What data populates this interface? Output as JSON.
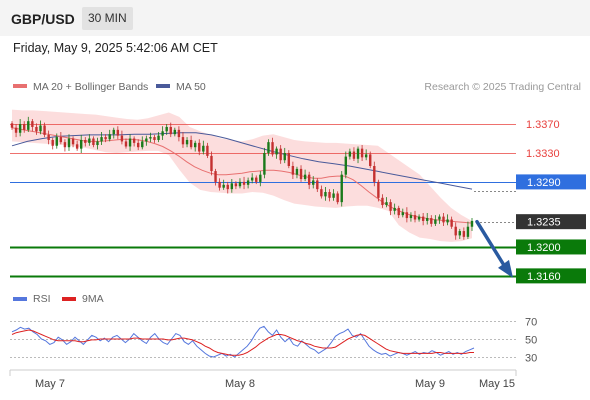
{
  "header": {
    "symbol": "GBP/USD",
    "timeframe": "30 MIN",
    "datetime": "Friday, May 9, 2025 5:42:06 AM CET"
  },
  "legend": {
    "ma20": "MA 20 + Bollinger Bands",
    "ma50": "MA 50",
    "credit": "Research © 2025 Trading Central"
  },
  "colors": {
    "resistance": "#e8413e",
    "support": "#0a7a0a",
    "pivot": "#2f6fdf",
    "last": "#333333",
    "ma20": "#e87070",
    "ma50": "#4a5a9a",
    "band": "#fbd4d4",
    "up_candle": "#1a7a1a",
    "down_candle": "#c43030",
    "rsi": "#5577dd",
    "rsi_ma": "#dd2222",
    "arrow": "#2a5aa0"
  },
  "chart_data": [
    {
      "type": "candlestick",
      "ylim": [
        1.3146,
        1.3395
      ],
      "levels": [
        {
          "label": "1.3370",
          "value": 1.337,
          "kind": "resistance"
        },
        {
          "label": "1.3330",
          "value": 1.333,
          "kind": "resistance"
        },
        {
          "label": "1.3290",
          "value": 1.329,
          "kind": "pivot"
        },
        {
          "label": "1.3235",
          "value": 1.3235,
          "kind": "last"
        },
        {
          "label": "1.3200",
          "value": 1.32,
          "kind": "support"
        },
        {
          "label": "1.3160",
          "value": 1.316,
          "kind": "support"
        }
      ],
      "x_ticks": [
        "May 7",
        "May 8",
        "May 9",
        "May 15"
      ],
      "closes": [
        1.3365,
        1.3358,
        1.337,
        1.3362,
        1.3374,
        1.3366,
        1.336,
        1.3368,
        1.3355,
        1.3348,
        1.334,
        1.3352,
        1.3345,
        1.3338,
        1.335,
        1.3342,
        1.3336,
        1.3348,
        1.3344,
        1.335,
        1.3341,
        1.3346,
        1.3352,
        1.3349,
        1.3356,
        1.3362,
        1.3354,
        1.3346,
        1.3339,
        1.335,
        1.3344,
        1.3338,
        1.3346,
        1.335,
        1.3352,
        1.3348,
        1.3354,
        1.336,
        1.3366,
        1.3356,
        1.3362,
        1.3352,
        1.3342,
        1.3348,
        1.3338,
        1.3344,
        1.3332,
        1.334,
        1.3326,
        1.3305,
        1.329,
        1.3282,
        1.3286,
        1.328,
        1.3288,
        1.3284,
        1.329,
        1.3286,
        1.3292,
        1.3296,
        1.329,
        1.33,
        1.333,
        1.3345,
        1.3328,
        1.3336,
        1.332,
        1.333,
        1.3312,
        1.33,
        1.3308,
        1.3294,
        1.33,
        1.3286,
        1.3292,
        1.328,
        1.327,
        1.3276,
        1.3268,
        1.3274,
        1.3262,
        1.33,
        1.3325,
        1.3332,
        1.3322,
        1.3336,
        1.3324,
        1.3328,
        1.3312,
        1.329,
        1.3268,
        1.3258,
        1.3262,
        1.325,
        1.3254,
        1.3244,
        1.3248,
        1.324,
        1.3244,
        1.3238,
        1.3242,
        1.3236,
        1.324,
        1.3232,
        1.3238,
        1.3242,
        1.3234,
        1.3238,
        1.3228,
        1.3216,
        1.3222,
        1.3214,
        1.3228,
        1.3236
      ],
      "ma20": [
        1.3365,
        1.3363,
        1.3361,
        1.3359,
        1.3357,
        1.3355,
        1.3353,
        1.3351,
        1.3349,
        1.3347,
        1.3346,
        1.3346,
        1.3347,
        1.3348,
        1.3349,
        1.3349,
        1.3348,
        1.3346,
        1.3343,
        1.3339,
        1.3333,
        1.3326,
        1.3318,
        1.3311,
        1.3306,
        1.3302,
        1.33,
        1.33,
        1.3301,
        1.3302,
        1.3304,
        1.3305,
        1.3306,
        1.3306,
        1.3305,
        1.3303,
        1.33,
        1.3297,
        1.3295,
        1.3295,
        1.3297,
        1.3298,
        1.3298,
        1.3293,
        1.3285,
        1.3276,
        1.3268,
        1.326,
        1.3254,
        1.3249,
        1.3245,
        1.3242,
        1.324,
        1.3238,
        1.3237,
        1.3236,
        1.3235,
        1.3234,
        1.3233
      ],
      "ma50": [
        1.334,
        1.3346,
        1.335,
        1.3353,
        1.3354,
        1.3355,
        1.3355,
        1.3355,
        1.3356,
        1.3356,
        1.3357,
        1.3358,
        1.3358,
        1.3355,
        1.335,
        1.3344,
        1.3338,
        1.3332,
        1.3327,
        1.3322,
        1.3318,
        1.3315,
        1.3312,
        1.3308,
        1.3304,
        1.33,
        1.3296,
        1.3292,
        1.3288,
        1.3284,
        1.328
      ],
      "bb_upper": [
        1.339,
        1.3389,
        1.3389,
        1.3388,
        1.3387,
        1.3386,
        1.3385,
        1.3384,
        1.3383,
        1.3381,
        1.3379,
        1.3377,
        1.3376,
        1.3378,
        1.3382,
        1.3386,
        1.338,
        1.3366,
        1.336,
        1.3355,
        1.335,
        1.3348,
        1.3346,
        1.3349,
        1.3354,
        1.3356,
        1.3352,
        1.3348,
        1.3346,
        1.3345,
        1.3344,
        1.3344,
        1.3343,
        1.3342,
        1.3341,
        1.334,
        1.333,
        1.332,
        1.331,
        1.33,
        1.3284,
        1.3268,
        1.3254,
        1.3244,
        1.3236
      ],
      "bb_lower": [
        1.3346,
        1.3345,
        1.3344,
        1.3343,
        1.3342,
        1.3341,
        1.3339,
        1.3337,
        1.3334,
        1.3331,
        1.333,
        1.3331,
        1.3332,
        1.3333,
        1.3333,
        1.3327,
        1.3307,
        1.3289,
        1.3279,
        1.3276,
        1.3275,
        1.3274,
        1.3274,
        1.3276,
        1.3275,
        1.3271,
        1.3265,
        1.326,
        1.3258,
        1.3256,
        1.3255,
        1.3254,
        1.3256,
        1.3257,
        1.3257,
        1.3254,
        1.325,
        1.323,
        1.322,
        1.3213,
        1.3211,
        1.3208,
        1.3207,
        1.3208,
        1.3212
      ],
      "forecast_from": 1.3235,
      "forecast_to": 1.316
    },
    {
      "type": "line",
      "legend": [
        "RSI",
        "9MA"
      ],
      "ylim": [
        20,
        80
      ],
      "y_ticks": [
        "70",
        "50",
        "30"
      ],
      "y_tick_values": [
        70,
        50,
        30
      ],
      "series": [
        {
          "name": "RSI",
          "values": [
            58,
            60,
            63,
            61,
            62,
            58,
            55,
            50,
            48,
            44,
            46,
            52,
            49,
            44,
            47,
            52,
            48,
            44,
            49,
            54,
            52,
            48,
            51,
            47,
            52,
            54,
            50,
            46,
            50,
            56,
            52,
            48,
            45,
            52,
            56,
            50,
            46,
            44,
            50,
            56,
            54,
            47,
            44,
            48,
            42,
            38,
            34,
            31,
            30,
            32,
            34,
            31,
            33,
            30,
            34,
            38,
            42,
            48,
            56,
            62,
            64,
            58,
            54,
            60,
            52,
            47,
            51,
            44,
            42,
            48,
            44,
            40,
            38,
            34,
            37,
            40,
            46,
            53,
            56,
            58,
            61,
            54,
            52,
            56,
            49,
            42,
            38,
            35,
            33,
            34,
            31,
            33,
            35,
            34,
            32,
            34,
            36,
            33,
            35,
            34,
            37,
            35,
            32,
            34,
            36,
            33,
            35,
            33,
            36,
            38,
            40
          ]
        },
        {
          "name": "9MA",
          "values": [
            55,
            57,
            58,
            59,
            60,
            59,
            57,
            55,
            53,
            51,
            49,
            48,
            48,
            48,
            48,
            48,
            47,
            47,
            48,
            49,
            49,
            50,
            50,
            50,
            50,
            50,
            50,
            50,
            50,
            51,
            51,
            50,
            50,
            50,
            50,
            50,
            50,
            49,
            49,
            50,
            51,
            51,
            50,
            49,
            47,
            45,
            42,
            40,
            37,
            35,
            34,
            33,
            32,
            32,
            32,
            33,
            35,
            38,
            41,
            45,
            48,
            51,
            53,
            55,
            55,
            54,
            52,
            50,
            48,
            47,
            45,
            44,
            42,
            41,
            40,
            40,
            40,
            41,
            44,
            47,
            50,
            52,
            54,
            55,
            54,
            51,
            48,
            45,
            42,
            39,
            37,
            36,
            35,
            34,
            34,
            34,
            34,
            34,
            34,
            34,
            34,
            35,
            35,
            34,
            34,
            34,
            34,
            34,
            34,
            35,
            35
          ]
        }
      ]
    }
  ]
}
